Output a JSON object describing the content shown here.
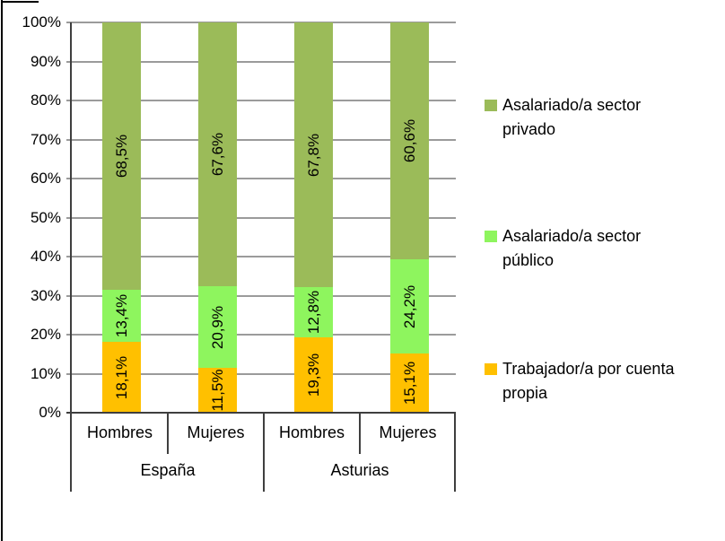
{
  "chart_data": {
    "type": "bar",
    "subtype": "stacked-100",
    "title": "",
    "y_axis": {
      "min": 0,
      "max": 100,
      "ticks": [
        "0%",
        "10%",
        "20%",
        "30%",
        "40%",
        "50%",
        "60%",
        "70%",
        "80%",
        "90%",
        "100%"
      ],
      "grid": true
    },
    "x_axis": {
      "groups": [
        {
          "label": "España",
          "categories": [
            "Hombres",
            "Mujeres"
          ]
        },
        {
          "label": "Asturias",
          "categories": [
            "Hombres",
            "Mujeres"
          ]
        }
      ]
    },
    "series": [
      {
        "name": "Trabajador/a por cuenta propia",
        "color": "#FFC000",
        "values": [
          18.1,
          11.5,
          19.3,
          15.1
        ],
        "labels": [
          "18,1%",
          "11,5%",
          "19,3%",
          "15,1%"
        ]
      },
      {
        "name": "Asalariado/a sector público",
        "color": "#8EF55E",
        "values": [
          13.4,
          20.9,
          12.8,
          24.2
        ],
        "labels": [
          "13,4%",
          "20,9%",
          "12,8%",
          "24,2%"
        ]
      },
      {
        "name": "Asalariado/a sector privado",
        "color": "#9BBB59",
        "values": [
          68.5,
          67.6,
          67.8,
          60.6
        ],
        "labels": [
          "68,5%",
          "67,6%",
          "67,8%",
          "60,6%"
        ]
      }
    ],
    "legend": {
      "position": "right",
      "items": [
        {
          "label": "Asalariado/a sector privado",
          "color": "#9BBB59"
        },
        {
          "label": "Asalariado/a sector público",
          "color": "#8EF55E"
        },
        {
          "label": "Trabajador/a por cuenta propia",
          "color": "#FFC000"
        }
      ]
    }
  },
  "colors": {
    "background": "#ffffff",
    "gridline": "#9b9b9b",
    "axis": "#3f3f3f",
    "text": "#000000",
    "frame": "#000000"
  }
}
